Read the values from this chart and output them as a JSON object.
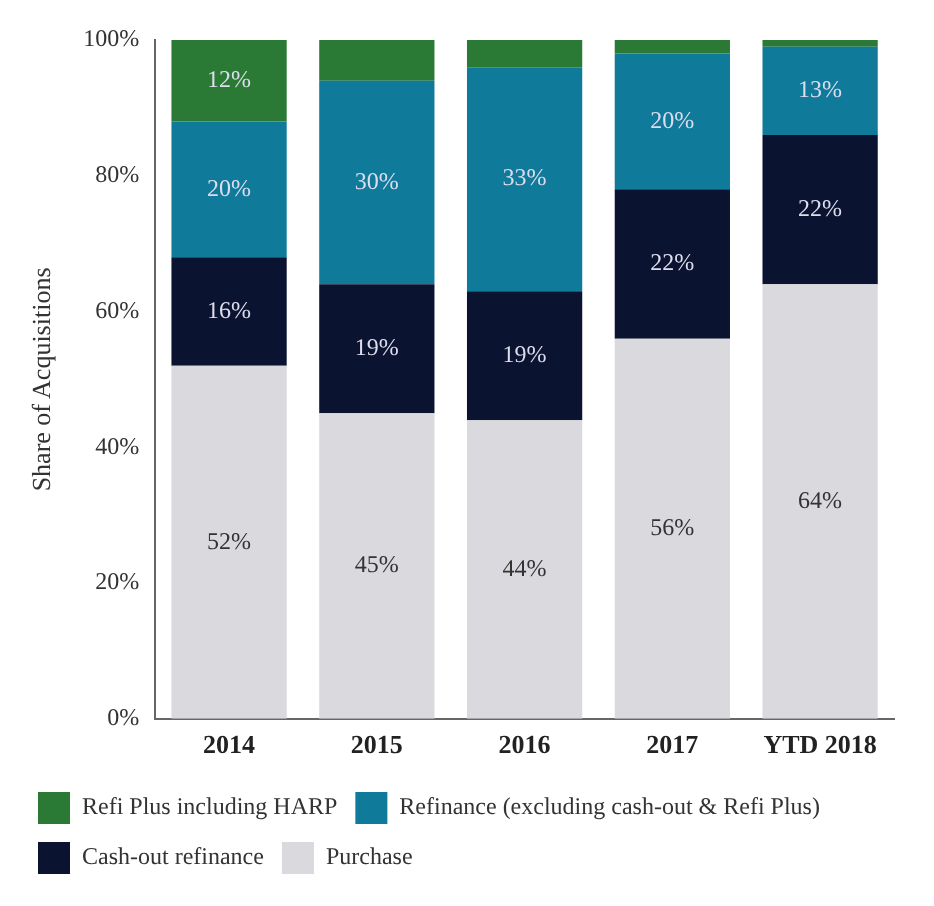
{
  "chart_data": {
    "type": "bar",
    "stacked": true,
    "ylabel": "Share of Acquisitions",
    "categories": [
      "2014",
      "2015",
      "2016",
      "2017",
      "YTD 2018"
    ],
    "series": [
      {
        "name": "Purchase",
        "color": "#d9d9de",
        "values": [
          52,
          45,
          44,
          56,
          64
        ],
        "value_labels": [
          "52%",
          "45%",
          "44%",
          "56%",
          "64%"
        ]
      },
      {
        "name": "Cash-out refinance",
        "color": "#0a1330",
        "values": [
          16,
          19,
          19,
          22,
          22
        ],
        "value_labels": [
          "16%",
          "19%",
          "19%",
          "22%",
          "22%"
        ]
      },
      {
        "name": "Refinance (excluding cash-out & Refi Plus)",
        "color": "#0f7a9a",
        "values": [
          20,
          30,
          33,
          20,
          13
        ],
        "value_labels": [
          "20%",
          "30%",
          "33%",
          "20%",
          "13%"
        ]
      },
      {
        "name": "Refi Plus including HARP",
        "color": "#2a7a35",
        "values": [
          12,
          6,
          4,
          2,
          1
        ],
        "value_labels": [
          "12%",
          null,
          null,
          null,
          null
        ]
      }
    ],
    "ylim": [
      0,
      100
    ],
    "yticks": [
      {
        "value": 0,
        "label": "0%"
      },
      {
        "value": 20,
        "label": "20%"
      },
      {
        "value": 40,
        "label": "40%"
      },
      {
        "value": 60,
        "label": "60%"
      },
      {
        "value": 80,
        "label": "80%"
      },
      {
        "value": 100,
        "label": "100%"
      }
    ],
    "grid": false,
    "legend": "bottom"
  }
}
